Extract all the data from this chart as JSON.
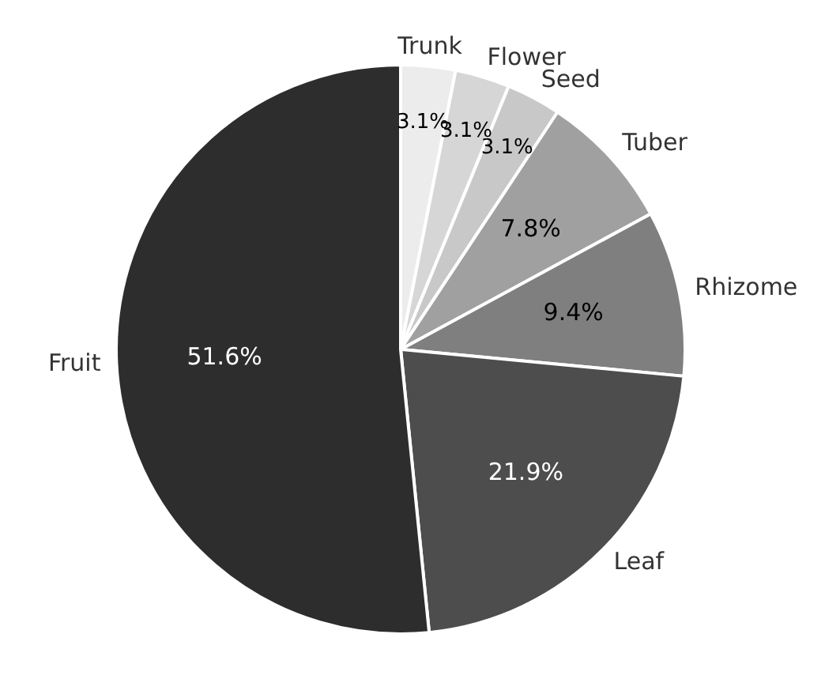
{
  "chart_data": {
    "type": "pie",
    "categories": [
      "Trunk",
      "Flower",
      "Seed",
      "Tuber",
      "Rhizome",
      "Leaf",
      "Fruit"
    ],
    "values": [
      3.1,
      3.1,
      3.1,
      7.8,
      9.4,
      21.9,
      51.6
    ],
    "value_labels": [
      "3.1%",
      "3.1%",
      "3.1%",
      "7.8%",
      "9.4%",
      "21.9%",
      "51.6%"
    ],
    "colors": [
      "#ececec",
      "#d6d6d6",
      "#c8c8c8",
      "#a0a0a0",
      "#7f7f7f",
      "#4d4d4d",
      "#2d2d2d"
    ],
    "legend": false
  }
}
